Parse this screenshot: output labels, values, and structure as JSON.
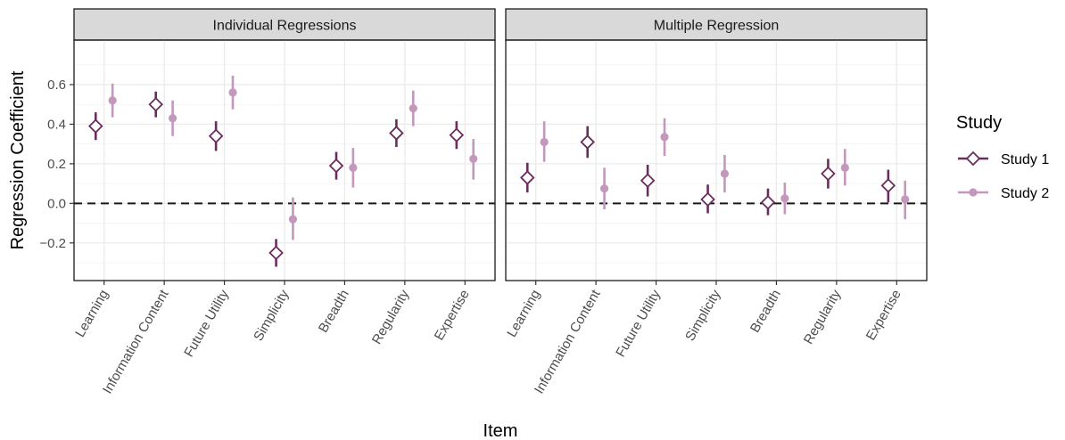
{
  "chart_data": {
    "type": "scatter",
    "subtype": "point-range",
    "xlabel": "Item",
    "ylabel": "Regression Coefficient",
    "ylim": [
      -0.39,
      0.825
    ],
    "yticks": [
      -0.2,
      0.0,
      0.2,
      0.4,
      0.6
    ],
    "ytick_labels": [
      "−0.2",
      "0.0",
      "0.2",
      "0.4",
      "0.6"
    ],
    "reference_line": {
      "y": 0,
      "style": "dashed"
    },
    "categories": [
      "Learning",
      "Information Content",
      "Future Utility",
      "Simplicity",
      "Breadth",
      "Regularity",
      "Expertise"
    ],
    "legend": {
      "title": "Study",
      "position": "right",
      "entries": [
        {
          "name": "Study 1",
          "shape": "open-diamond",
          "color": "#6b2d5c"
        },
        {
          "name": "Study 2",
          "shape": "filled-circle",
          "color": "#c497bd"
        }
      ]
    },
    "panels": [
      {
        "title": "Individual Regressions",
        "series": [
          {
            "name": "Study 1",
            "estimate": [
              0.39,
              0.5,
              0.34,
              -0.25,
              0.19,
              0.355,
              0.345
            ],
            "lower": [
              0.32,
              0.435,
              0.265,
              -0.32,
              0.12,
              0.285,
              0.275
            ],
            "upper": [
              0.46,
              0.565,
              0.415,
              -0.18,
              0.26,
              0.425,
              0.415
            ]
          },
          {
            "name": "Study 2",
            "estimate": [
              0.52,
              0.43,
              0.56,
              -0.08,
              0.18,
              0.48,
              0.225
            ],
            "lower": [
              0.435,
              0.34,
              0.475,
              -0.185,
              0.08,
              0.39,
              0.12
            ],
            "upper": [
              0.605,
              0.52,
              0.645,
              0.03,
              0.28,
              0.57,
              0.325
            ]
          }
        ]
      },
      {
        "title": "Multiple Regression",
        "series": [
          {
            "name": "Study 1",
            "estimate": [
              0.13,
              0.31,
              0.115,
              0.02,
              0.005,
              0.15,
              0.09
            ],
            "lower": [
              0.055,
              0.23,
              0.035,
              -0.05,
              -0.06,
              0.075,
              0.005
            ],
            "upper": [
              0.205,
              0.39,
              0.195,
              0.095,
              0.075,
              0.225,
              0.17
            ]
          },
          {
            "name": "Study 2",
            "estimate": [
              0.31,
              0.075,
              0.335,
              0.15,
              0.025,
              0.18,
              0.02
            ],
            "lower": [
              0.21,
              -0.03,
              0.24,
              0.055,
              -0.055,
              0.09,
              -0.08
            ],
            "upper": [
              0.415,
              0.18,
              0.43,
              0.245,
              0.105,
              0.275,
              0.115
            ]
          }
        ]
      }
    ]
  }
}
